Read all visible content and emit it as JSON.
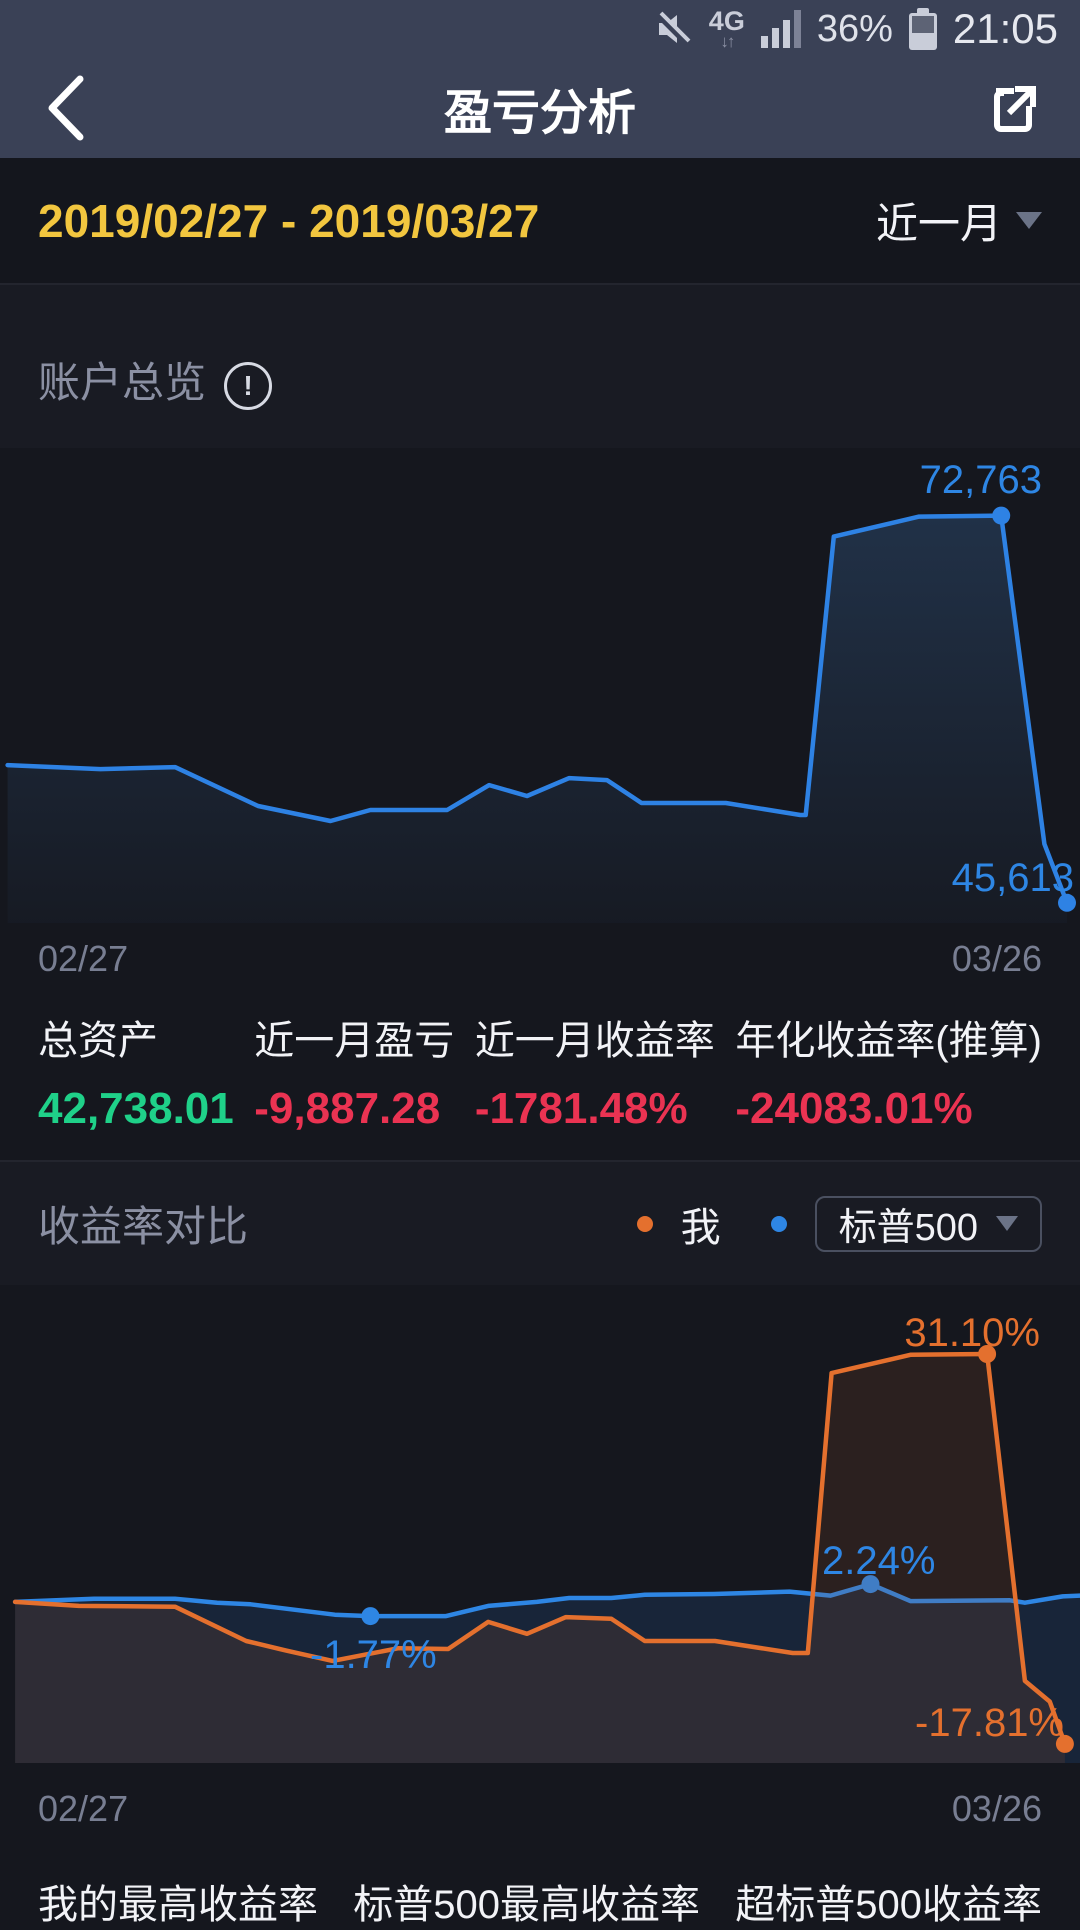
{
  "status_bar": {
    "network": "4G",
    "battery_pct": "36%",
    "time": "21:05",
    "icons": [
      "mute-icon",
      "signal-icon",
      "battery-icon"
    ]
  },
  "nav": {
    "title": "盈亏分析"
  },
  "period": {
    "range": "2019/02/27 - 2019/03/27",
    "selected": "近一月"
  },
  "account_overview": {
    "title": "账户总览",
    "axis_start": "02/27",
    "axis_end": "03/26",
    "stats": [
      {
        "label": "总资产",
        "value": "42,738.01"
      },
      {
        "label": "近一月盈亏",
        "value": "-9,887.28"
      },
      {
        "label": "近一月收益率",
        "value": "-1781.48%"
      },
      {
        "label": "年化收益率(推算)",
        "value": "-24083.01%"
      }
    ],
    "positive_color": "#1fd189",
    "negative_color": "#ea3352"
  },
  "comparison": {
    "title": "收益率对比",
    "legend_me": "我",
    "benchmark": "标普500",
    "axis_start": "02/27",
    "axis_end": "03/26",
    "footer": [
      "我的最高收益率",
      "标普500最高收益率",
      "超标普500收益率"
    ]
  },
  "chart_data": [
    {
      "type": "area",
      "title": "账户总览 (总资产)",
      "xlabel_start": "02/27",
      "xlabel_end": "03/26",
      "ylim": [
        44200,
        77500
      ],
      "grid": false,
      "legend": "none",
      "series": [
        {
          "name": "总资产",
          "color": "#2e82e4",
          "fill": "url(#gradA)",
          "x": [
            0.007,
            0.093,
            0.162,
            0.239,
            0.306,
            0.343,
            0.414,
            0.453,
            0.488,
            0.527,
            0.562,
            0.594,
            0.672,
            0.741,
            0.746,
            0.772,
            0.851,
            0.927,
            0.967,
            0.988
          ],
          "values": [
            55270,
            54990,
            55130,
            52400,
            51350,
            52120,
            52120,
            53870,
            53100,
            54360,
            54220,
            52610,
            52610,
            51770,
            51770,
            71290,
            72690,
            72763,
            49740,
            45613
          ],
          "markers": [
            17,
            19
          ]
        }
      ],
      "annotations": [
        {
          "text": "72,763"
        },
        {
          "text": "45,613"
        }
      ],
      "max_value": 72763,
      "end_value": 45613
    },
    {
      "type": "area",
      "title": "收益率对比 (%)",
      "xlabel_start": "02/27",
      "xlabel_end": "03/26",
      "ylim": [
        -20.2,
        39.75
      ],
      "grid": false,
      "legend": "top-right",
      "series": [
        {
          "name": "标普500",
          "color": "#2e86e4",
          "fill": "rgba(40,95,165,0.20)",
          "x": [
            0.014,
            0.087,
            0.162,
            0.201,
            0.232,
            0.31,
            0.343,
            0.413,
            0.452,
            0.497,
            0.527,
            0.566,
            0.597,
            0.661,
            0.731,
            0.769,
            0.806,
            0.843,
            0.935,
            0.949,
            0.984,
            1.0
          ],
          "values": [
            0.0,
            0.4,
            0.4,
            -0.1,
            -0.3,
            -1.6,
            -1.77,
            -1.77,
            -0.5,
            0.0,
            0.5,
            0.5,
            0.9,
            1.0,
            1.3,
            0.8,
            2.24,
            0.1,
            0.2,
            -0.1,
            0.7,
            0.8
          ],
          "markers": [
            6,
            16
          ]
        },
        {
          "name": "我",
          "color": "#e4702e",
          "fill": "rgba(160,80,40,0.16)",
          "x": [
            0.014,
            0.073,
            0.162,
            0.228,
            0.265,
            0.308,
            0.369,
            0.415,
            0.452,
            0.488,
            0.524,
            0.566,
            0.597,
            0.662,
            0.734,
            0.748,
            0.77,
            0.843,
            0.914,
            0.949,
            0.972,
            0.986
          ],
          "values": [
            0.0,
            -0.5,
            -0.6,
            -4.9,
            -6.1,
            -7.4,
            -5.8,
            -5.9,
            -2.5,
            -4.0,
            -1.9,
            -2.1,
            -4.9,
            -4.9,
            -6.4,
            -6.4,
            28.7,
            31.0,
            31.1,
            -9.9,
            -12.5,
            -17.81
          ],
          "markers": [
            18,
            21
          ]
        }
      ],
      "annotations": [
        {
          "text": "31.10%"
        },
        {
          "text": "2.24%"
        },
        {
          "text": "-1.77%"
        },
        {
          "text": "-17.81%"
        }
      ]
    }
  ]
}
